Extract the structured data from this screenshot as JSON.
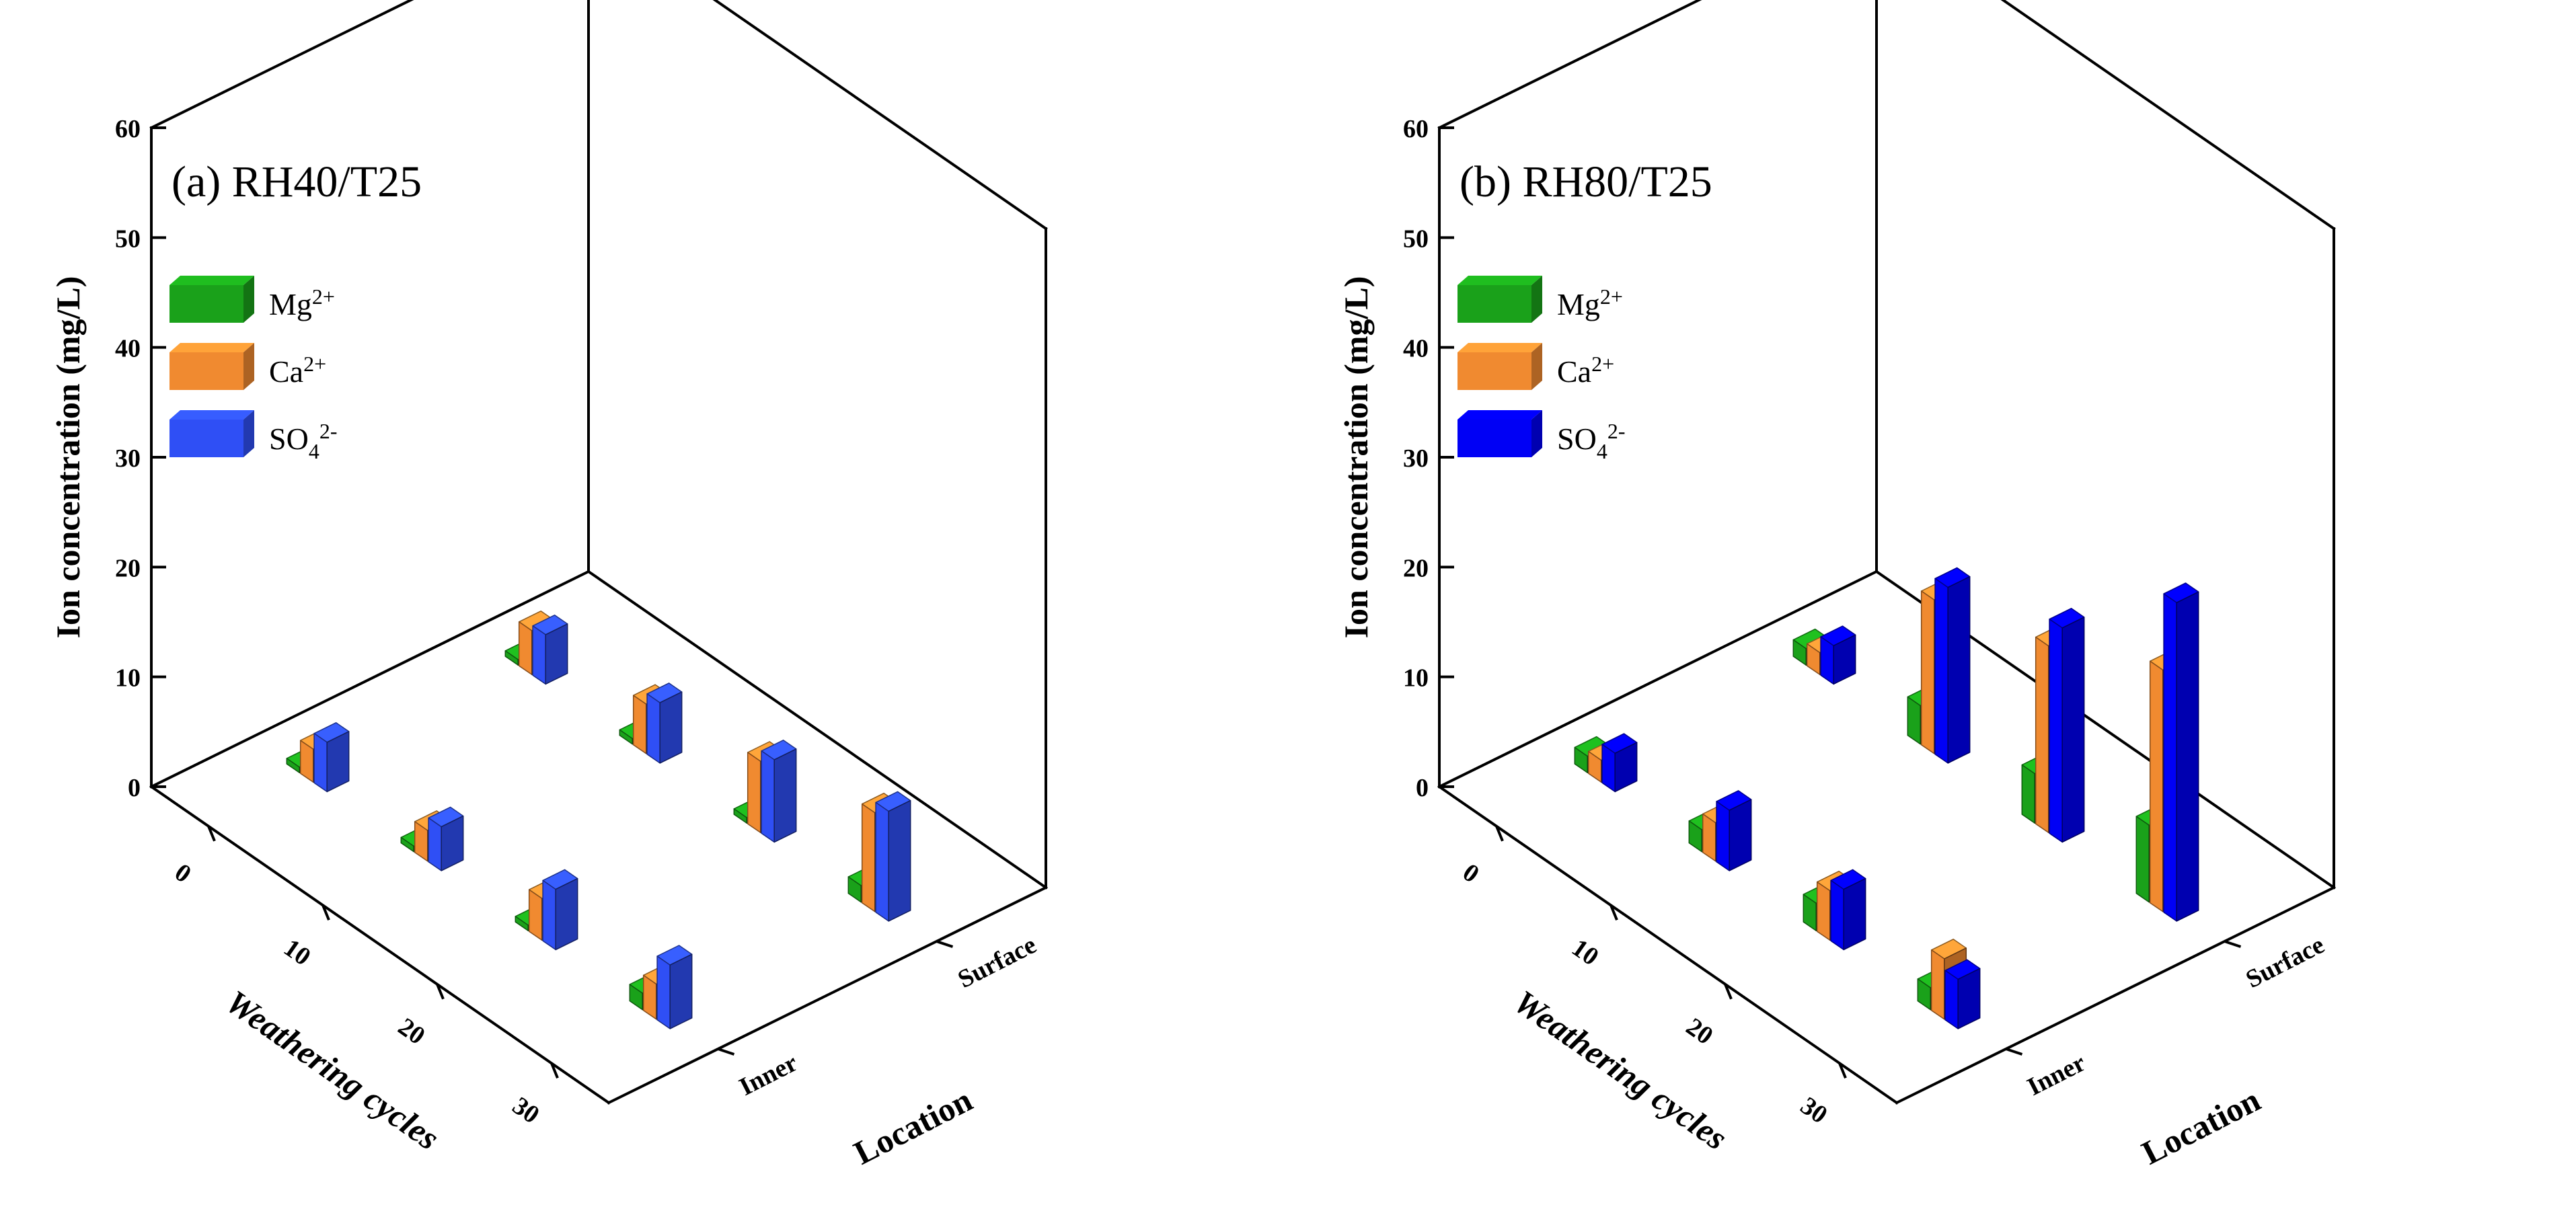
{
  "colors": {
    "mg": "#1aa11a",
    "ca": "#f08a30",
    "so4": "#2f4ff5",
    "so4_b": "#0000f5"
  },
  "chart_data": [
    {
      "type": "bar3d",
      "title": "(a) RH40/T25",
      "zlabel": "Ion concentration (mg/L)",
      "xlabel": "Weathering cycles",
      "ylabel": "Location",
      "zlim": [
        0,
        60
      ],
      "z_ticks": [
        "0",
        "10",
        "20",
        "30",
        "40",
        "50",
        "60"
      ],
      "x_ticks": [
        "0",
        "10",
        "20",
        "30"
      ],
      "y_ticks": [
        "Inner",
        "Surface"
      ],
      "legend": [
        {
          "base": "Mg",
          "sup": "2+",
          "sub": ""
        },
        {
          "base": "Ca",
          "sup": "2+",
          "sub": ""
        },
        {
          "base": "SO",
          "sub": "4",
          "sup": "2-"
        }
      ],
      "series": [
        {
          "name": "Mg2+",
          "inner": [
            0.5,
            0.5,
            0.5,
            1.5
          ],
          "surface": [
            0.5,
            0.5,
            0.5,
            1.5
          ]
        },
        {
          "name": "Ca2+",
          "inner": [
            3.0,
            2.8,
            3.8,
            3.2
          ],
          "surface": [
            4.0,
            4.5,
            6.5,
            9.0
          ]
        },
        {
          "name": "SO42-",
          "inner": [
            4.5,
            4.0,
            5.5,
            5.8
          ],
          "surface": [
            4.5,
            5.5,
            7.5,
            10.0
          ]
        }
      ]
    },
    {
      "type": "bar3d",
      "title": "(b) RH80/T25",
      "zlabel": "Ion concentration (mg/L)",
      "xlabel": "Weathering cycles",
      "ylabel": "Location",
      "zlim": [
        0,
        60
      ],
      "z_ticks": [
        "0",
        "10",
        "20",
        "30",
        "40",
        "50",
        "60"
      ],
      "x_ticks": [
        "0",
        "10",
        "20",
        "30"
      ],
      "y_ticks": [
        "Inner",
        "Surface"
      ],
      "legend": [
        {
          "base": "Mg",
          "sup": "2+",
          "sub": ""
        },
        {
          "base": "Ca",
          "sup": "2+",
          "sub": ""
        },
        {
          "base": "SO",
          "sub": "4",
          "sup": "2-"
        }
      ],
      "series": [
        {
          "name": "Mg2+",
          "inner": [
            1.5,
            2.0,
            2.5,
            2.0
          ],
          "surface": [
            1.5,
            3.5,
            4.5,
            7.0
          ]
        },
        {
          "name": "Ca2+",
          "inner": [
            2.0,
            3.5,
            4.5,
            5.5
          ],
          "surface": [
            2.0,
            14.0,
            17.0,
            22.0
          ]
        },
        {
          "name": "SO42-",
          "inner": [
            3.5,
            5.5,
            5.5,
            4.5
          ],
          "surface": [
            3.5,
            16.0,
            19.5,
            29.0
          ]
        }
      ]
    }
  ]
}
